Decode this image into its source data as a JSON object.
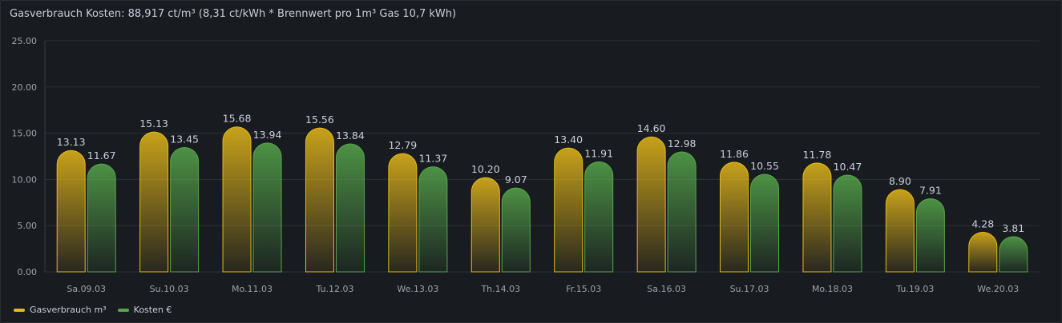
{
  "panel": {
    "title": "Gasverbrauch Kosten: 88,917 ct/m³ (8,31 ct/kWh * Brennwert pro 1m³ Gas 10,7 kWh)"
  },
  "colors": {
    "gas": "#e6b91a",
    "kosten": "#56a64b",
    "grid": "#2c2f35"
  },
  "chart_data": {
    "type": "bar",
    "categories": [
      "Sa.09.03",
      "Su.10.03",
      "Mo.11.03",
      "Tu.12.03",
      "We.13.03",
      "Th.14.03",
      "Fr.15.03",
      "Sa.16.03",
      "Su.17.03",
      "Mo.18.03",
      "Tu.19.03",
      "We.20.03"
    ],
    "series": [
      {
        "name": "Gasverbrauch m³",
        "values": [
          13.13,
          15.13,
          15.68,
          15.56,
          12.79,
          10.2,
          13.4,
          14.6,
          11.86,
          11.78,
          8.9,
          4.28
        ],
        "labels": [
          "13.13",
          "15.13",
          "15.68",
          "15.56",
          "12.79",
          "10.20",
          "13.40",
          "14.60",
          "11.86",
          "11.78",
          "8.90",
          "4.28"
        ]
      },
      {
        "name": "Kosten €",
        "values": [
          11.67,
          13.45,
          13.94,
          13.84,
          11.37,
          9.07,
          11.91,
          12.98,
          10.55,
          10.47,
          7.91,
          3.81
        ],
        "labels": [
          "11.67",
          "13.45",
          "13.94",
          "13.84",
          "11.37",
          "9.07",
          "11.91",
          "12.98",
          "10.55",
          "10.47",
          "7.91",
          "3.81"
        ]
      }
    ],
    "yticks": [
      "0.00",
      "5.00",
      "10.00",
      "15.00",
      "20.00",
      "25.00"
    ],
    "ylim": [
      0,
      25
    ],
    "grid": true,
    "legend": "bottom-left"
  }
}
